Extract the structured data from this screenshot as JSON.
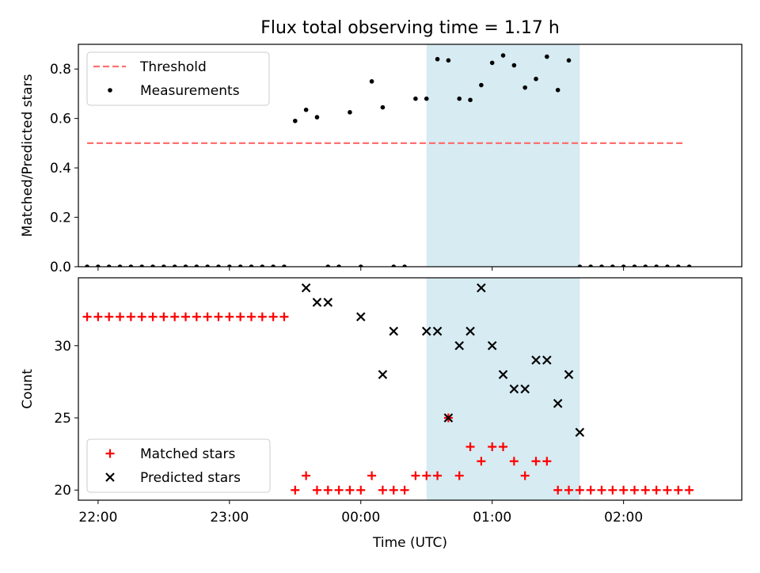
{
  "title": "Flux total observing time = 1.17 h",
  "colors": {
    "threshold": "#ff7070",
    "measurement": "#000000",
    "matched": "#ff0000",
    "predicted": "#000000",
    "span": "#add8e6"
  },
  "chart_data": [
    {
      "type": "scatter",
      "panel": "top",
      "title": "Flux total observing time = 1.17 h",
      "xlabel": "",
      "ylabel": "Matched/Predicted stars",
      "ylim": [
        0,
        0.9
      ],
      "yticks": [
        0.0,
        0.2,
        0.4,
        0.6,
        0.8
      ],
      "ytick_labels": [
        "0.0",
        "0.2",
        "0.4",
        "0.6",
        "0.8"
      ],
      "xlim": [
        "21:51",
        "02:54"
      ],
      "shaded_span": [
        "00:30",
        "01:40"
      ],
      "legend": {
        "position": "upper left",
        "entries": [
          "Threshold",
          "Measurements"
        ]
      },
      "series": [
        {
          "name": "Threshold",
          "style": "dashed line",
          "x": [
            "21:55",
            "02:28"
          ],
          "y": [
            0.5,
            0.5
          ]
        },
        {
          "name": "Measurements",
          "style": "dots",
          "x": [
            "21:55",
            "22:00",
            "22:05",
            "22:10",
            "22:15",
            "22:20",
            "22:25",
            "22:30",
            "22:35",
            "22:40",
            "22:45",
            "22:50",
            "22:55",
            "23:00",
            "23:05",
            "23:10",
            "23:15",
            "23:20",
            "23:25",
            "23:30",
            "23:35",
            "23:40",
            "23:45",
            "23:50",
            "23:55",
            "00:00",
            "00:05",
            "00:10",
            "00:15",
            "00:20",
            "00:25",
            "00:30",
            "00:35",
            "00:40",
            "00:45",
            "00:50",
            "00:55",
            "01:00",
            "01:05",
            "01:10",
            "01:15",
            "01:20",
            "01:25",
            "01:30",
            "01:35",
            "01:40",
            "01:45",
            "01:50",
            "01:55",
            "02:00",
            "02:05",
            "02:10",
            "02:15",
            "02:20",
            "02:25",
            "02:30"
          ],
          "y": [
            0,
            0,
            0,
            0,
            0,
            0,
            0,
            0,
            0,
            0,
            0,
            0,
            0,
            0,
            0,
            0,
            0,
            0,
            0,
            0.59,
            0.635,
            0.605,
            0,
            0,
            0.625,
            0,
            0.75,
            0.645,
            0,
            0,
            0.68,
            0.68,
            0.84,
            0.835,
            0.68,
            0.675,
            0.735,
            0.825,
            0.855,
            0.815,
            0.725,
            0.76,
            0.85,
            0.715,
            0.835,
            0,
            0,
            0,
            0,
            0,
            0,
            0,
            0,
            0,
            0,
            0
          ]
        }
      ]
    },
    {
      "type": "scatter",
      "panel": "bottom",
      "xlabel": "Time (UTC)",
      "ylabel": "Count",
      "ylim": [
        19.3,
        34.7
      ],
      "yticks": [
        20,
        25,
        30
      ],
      "ytick_labels": [
        "20",
        "25",
        "30"
      ],
      "xlim": [
        "21:51",
        "02:54"
      ],
      "xticks": [
        "22:00",
        "23:00",
        "00:00",
        "01:00",
        "02:00"
      ],
      "xtick_labels": [
        "22:00",
        "23:00",
        "00:00",
        "01:00",
        "02:00"
      ],
      "shaded_span": [
        "00:30",
        "01:40"
      ],
      "legend": {
        "position": "lower left",
        "entries": [
          "Matched stars",
          "Predicted stars"
        ]
      },
      "series": [
        {
          "name": "Matched stars",
          "marker": "plus",
          "x": [
            "21:55",
            "22:00",
            "22:05",
            "22:10",
            "22:15",
            "22:20",
            "22:25",
            "22:30",
            "22:35",
            "22:40",
            "22:45",
            "22:50",
            "22:55",
            "23:00",
            "23:05",
            "23:10",
            "23:15",
            "23:20",
            "23:25",
            "23:30",
            "23:35",
            "23:40",
            "23:45",
            "23:50",
            "23:55",
            "00:00",
            "00:05",
            "00:10",
            "00:15",
            "00:20",
            "00:25",
            "00:30",
            "00:35",
            "00:40",
            "00:45",
            "00:50",
            "00:55",
            "01:00",
            "01:05",
            "01:10",
            "01:15",
            "01:20",
            "01:25",
            "01:30",
            "01:35",
            "01:40",
            "01:45",
            "01:50",
            "01:55",
            "02:00",
            "02:05",
            "02:10",
            "02:15",
            "02:20",
            "02:25",
            "02:30"
          ],
          "y": [
            32,
            32,
            32,
            32,
            32,
            32,
            32,
            32,
            32,
            32,
            32,
            32,
            32,
            32,
            32,
            32,
            32,
            32,
            32,
            20,
            21,
            20,
            20,
            20,
            20,
            20,
            21,
            20,
            20,
            20,
            21,
            21,
            21,
            25,
            21,
            23,
            22,
            23,
            23,
            22,
            21,
            22,
            22,
            20,
            20,
            20,
            20,
            20,
            20,
            20,
            20,
            20,
            20,
            20,
            20,
            20
          ]
        },
        {
          "name": "Predicted stars",
          "marker": "x",
          "x": [
            "23:35",
            "23:40",
            "23:45",
            "00:00",
            "00:10",
            "00:15",
            "00:30",
            "00:35",
            "00:40",
            "00:45",
            "00:50",
            "00:55",
            "01:00",
            "01:05",
            "01:10",
            "01:15",
            "01:20",
            "01:25",
            "01:30",
            "01:35",
            "01:40"
          ],
          "y": [
            34,
            33,
            33,
            32,
            28,
            31,
            31,
            31,
            25,
            30,
            31,
            34,
            30,
            28,
            27,
            27,
            29,
            29,
            26,
            28,
            24
          ]
        }
      ]
    }
  ]
}
